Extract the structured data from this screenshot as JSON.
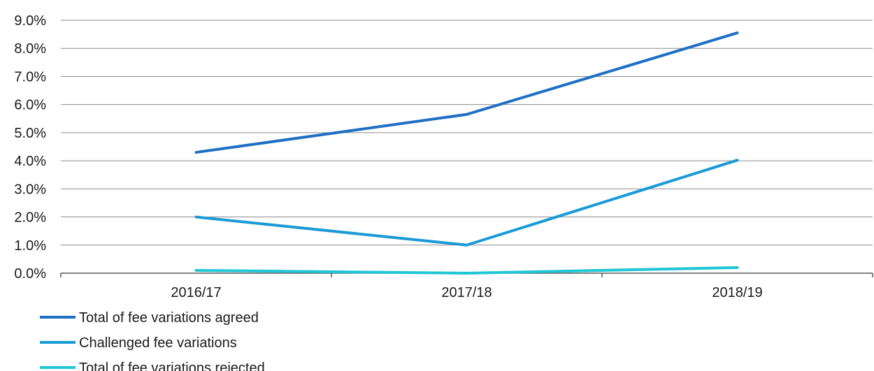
{
  "chart_data": {
    "type": "line",
    "title": "",
    "xlabel": "",
    "ylabel": "",
    "categories": [
      "2016/17",
      "2017/18",
      "2018/19"
    ],
    "ylim": [
      0,
      9
    ],
    "yticks": [
      0,
      1,
      2,
      3,
      4,
      5,
      6,
      7,
      8,
      9
    ],
    "ytick_labels": [
      "0.0%",
      "1.0%",
      "2.0%",
      "3.0%",
      "4.0%",
      "5.0%",
      "6.0%",
      "7.0%",
      "8.0%",
      "9.0%"
    ],
    "grid": true,
    "legend_position": "bottom-left",
    "series": [
      {
        "name": "Total of fee variations agreed",
        "values": [
          4.3,
          5.65,
          8.55
        ],
        "color": "#1f6fc5"
      },
      {
        "name": "Challenged fee variations",
        "values": [
          2.0,
          1.0,
          4.02
        ],
        "color": "#1a9ad6"
      },
      {
        "name": "Total of fee variations rejected",
        "values": [
          0.1,
          0.0,
          0.2
        ],
        "color": "#1fc6d6"
      }
    ]
  }
}
